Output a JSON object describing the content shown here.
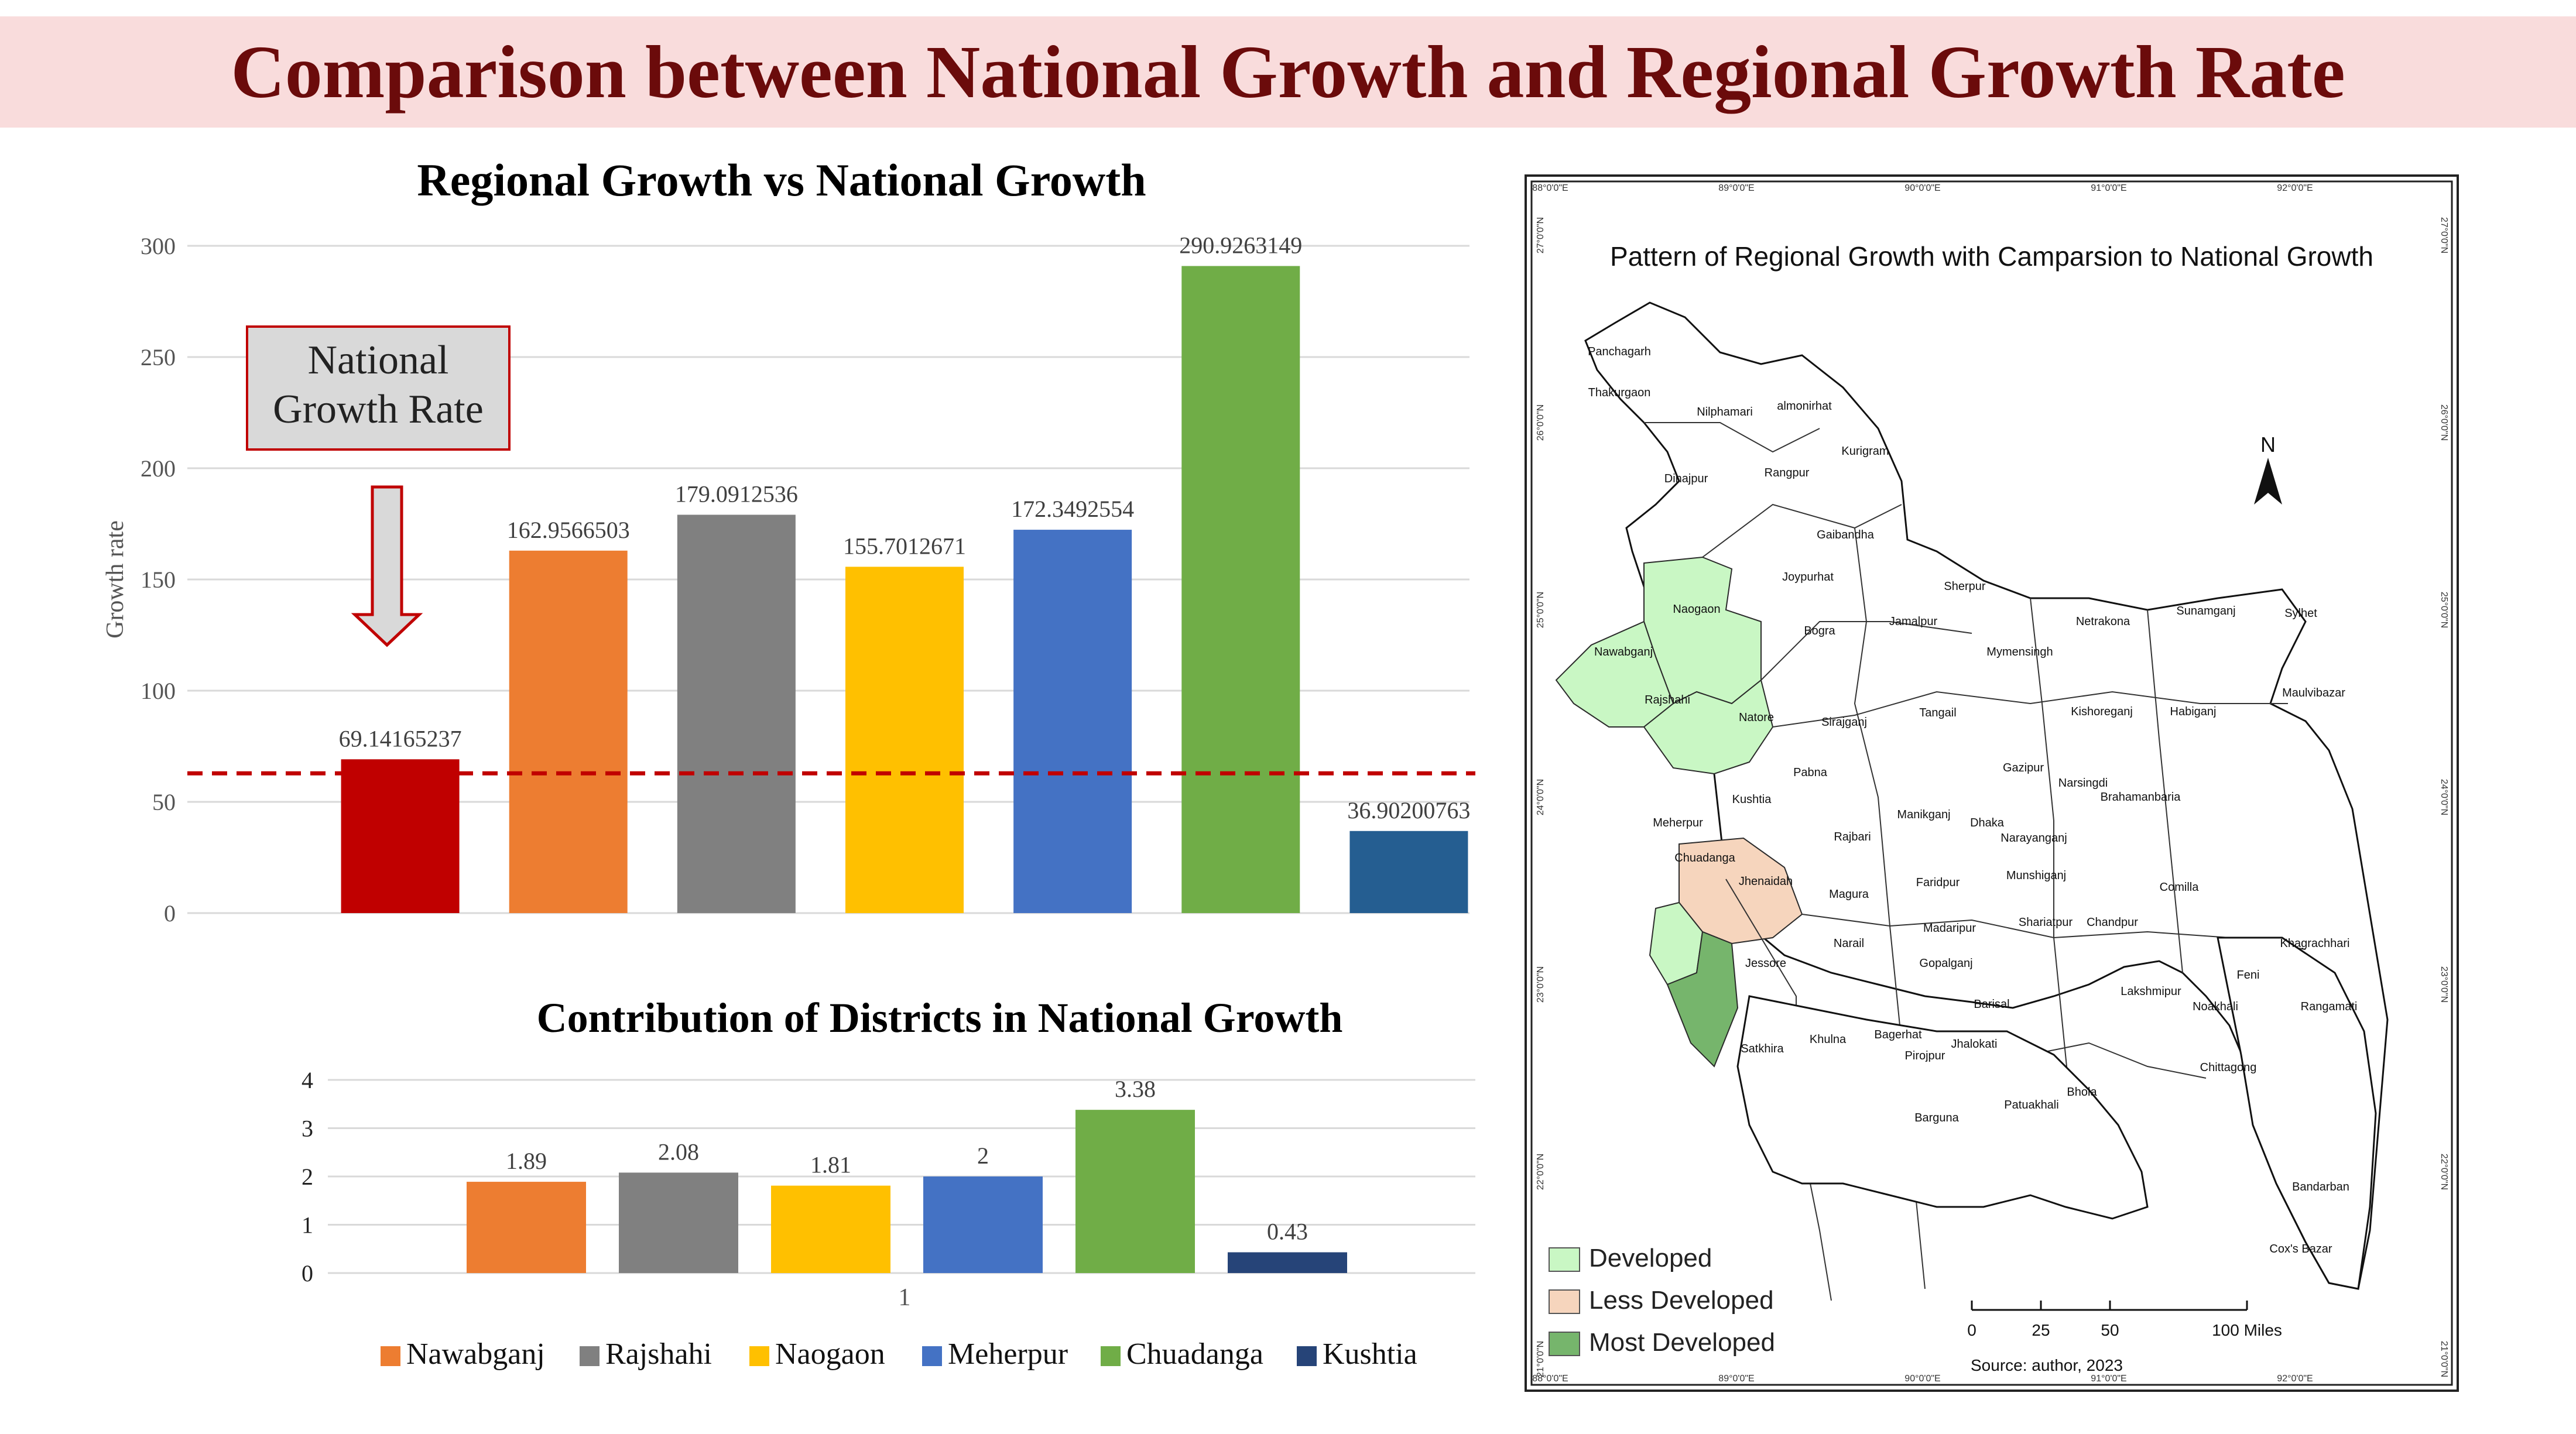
{
  "page": {
    "title": "Comparison between National Growth and Regional Growth Rate"
  },
  "colors": {
    "banner_bg": "#f9dcdc",
    "title_text": "#6b0b0b",
    "national": "#c00000",
    "nawabganj": "#ed7d31",
    "rajshahi": "#808080",
    "naogaon": "#ffc000",
    "meherpur": "#4472c4",
    "chuadanga": "#70ad47",
    "kushtia": "#255e91",
    "kushtia_contrib": "#264478",
    "reference_line": "#c00000"
  },
  "chart_data": [
    {
      "type": "bar",
      "title": "Regional Growth vs National Growth",
      "xlabel": "",
      "ylabel": "Growth rate",
      "ylim": [
        0,
        300
      ],
      "yticks": [
        0,
        50,
        100,
        150,
        200,
        250,
        300
      ],
      "grid": true,
      "categories": [
        "National",
        "Nawabganj",
        "Rajshahi",
        "Naogaon",
        "Meherpur",
        "Chuadanga",
        "Kushtia"
      ],
      "values": [
        69.14165237,
        162.9566503,
        179.0912536,
        155.7012671,
        172.3492554,
        290.9263149,
        36.90200763
      ],
      "data_labels": [
        "69.14165237",
        "162.9566503",
        "179.0912536",
        "155.7012671",
        "172.3492554",
        "290.9263149",
        "36.90200763"
      ],
      "reference_line": {
        "value": 69.14165237,
        "style": "dashed"
      },
      "annotation": {
        "line1": "National",
        "line2": "Growth Rate",
        "arrow": "down"
      }
    },
    {
      "type": "bar",
      "title": "Contribution of Districts in National Growth",
      "xlabel": "",
      "ylabel": "",
      "ylim": [
        0,
        4
      ],
      "yticks": [
        0,
        1,
        2,
        3,
        4
      ],
      "grid": true,
      "categories": [
        "1"
      ],
      "series": [
        {
          "name": "Nawabganj",
          "values": [
            1.89
          ]
        },
        {
          "name": "Rajshahi",
          "values": [
            2.08
          ]
        },
        {
          "name": "Naogaon",
          "values": [
            1.81
          ]
        },
        {
          "name": "Meherpur",
          "values": [
            2
          ]
        },
        {
          "name": "Chuadanga",
          "values": [
            3.38
          ]
        },
        {
          "name": "Kushtia",
          "values": [
            0.43
          ]
        }
      ],
      "data_labels": [
        "1.89",
        "2.08",
        "1.81",
        "2",
        "3.38",
        "0.43"
      ],
      "legend": "bottom"
    }
  ],
  "map": {
    "title": "Pattern of Regional Growth with Camparsion to National Growth",
    "north_label": "N",
    "legend": [
      {
        "label": "Developed",
        "color": "#c9f7c4"
      },
      {
        "label": "Less Developed",
        "color": "#f6d5bd"
      },
      {
        "label": "Most Developed",
        "color": "#76b56c"
      }
    ],
    "scale_ticks": [
      "0",
      "25",
      "50",
      "100 Miles"
    ],
    "source": "Source: author, 2023",
    "lon_ticks": [
      "88°0'0\"E",
      "89°0'0\"E",
      "90°0'0\"E",
      "91°0'0\"E",
      "92°0'0\"E"
    ],
    "lat_ticks": [
      "27°0'0\"N",
      "26°0'0\"N",
      "25°0'0\"N",
      "24°0'0\"N",
      "23°0'0\"N",
      "22°0'0\"N",
      "21°0'0\"N"
    ],
    "districts": [
      {
        "name": "Panchagarh"
      },
      {
        "name": "Thakurgaon"
      },
      {
        "name": "Nilphamari"
      },
      {
        "name": "almonirhat"
      },
      {
        "name": "Kurigram"
      },
      {
        "name": "Dinajpur"
      },
      {
        "name": "Rangpur"
      },
      {
        "name": "Gaibandha"
      },
      {
        "name": "Joypurhat"
      },
      {
        "name": "Naogaon"
      },
      {
        "name": "Nawabganj"
      },
      {
        "name": "Bogra"
      },
      {
        "name": "Rajshahi"
      },
      {
        "name": "Natore"
      },
      {
        "name": "Sirajganj"
      },
      {
        "name": "Jamalpur"
      },
      {
        "name": "Sherpur"
      },
      {
        "name": "Mymensingh"
      },
      {
        "name": "Netrakona"
      },
      {
        "name": "Sunamganj"
      },
      {
        "name": "Sylhet"
      },
      {
        "name": "Maulvibazar"
      },
      {
        "name": "Habiganj"
      },
      {
        "name": "Kishoreganj"
      },
      {
        "name": "Tangail"
      },
      {
        "name": "Pabna"
      },
      {
        "name": "Kushtia"
      },
      {
        "name": "Meherpur"
      },
      {
        "name": "Chuadanga"
      },
      {
        "name": "Jhenaidah"
      },
      {
        "name": "Rajbari"
      },
      {
        "name": "Manikganj"
      },
      {
        "name": "Dhaka"
      },
      {
        "name": "Gazipur"
      },
      {
        "name": "Narsingdi"
      },
      {
        "name": "Brahamanbaria"
      },
      {
        "name": "Narayanganj"
      },
      {
        "name": "Munshiganj"
      },
      {
        "name": "Faridpur"
      },
      {
        "name": "Magura"
      },
      {
        "name": "Narail"
      },
      {
        "name": "Jessore"
      },
      {
        "name": "Madaripur"
      },
      {
        "name": "Shariatpur"
      },
      {
        "name": "Chandpur"
      },
      {
        "name": "Comilla"
      },
      {
        "name": "Gopalganj"
      },
      {
        "name": "Khagrachhari"
      },
      {
        "name": "Feni"
      },
      {
        "name": "Lakshmipur"
      },
      {
        "name": "Rangamati"
      },
      {
        "name": "Noakhali"
      },
      {
        "name": "Barisal"
      },
      {
        "name": "Satkhira"
      },
      {
        "name": "Khulna"
      },
      {
        "name": "Bagerhat"
      },
      {
        "name": "Jhalokati"
      },
      {
        "name": "Pirojpur"
      },
      {
        "name": "Chittagong"
      },
      {
        "name": "Patuakhali"
      },
      {
        "name": "Bhola"
      },
      {
        "name": "Barguna"
      },
      {
        "name": "Bandarban"
      },
      {
        "name": "Cox's Bazar"
      }
    ]
  }
}
